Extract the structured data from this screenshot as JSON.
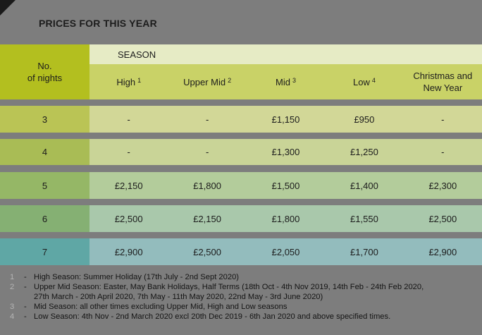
{
  "title": "PRICES FOR THIS YEAR",
  "header": {
    "nights_label_line1": "No.",
    "nights_label_line2": "of nights",
    "season_label": "SEASON",
    "columns": [
      {
        "label": "High",
        "note": "1"
      },
      {
        "label": "Upper Mid",
        "note": "2"
      },
      {
        "label": "Mid",
        "note": "3"
      },
      {
        "label": "Low",
        "note": "4"
      },
      {
        "label_line1": "Christmas and",
        "label_line2": "New Year"
      }
    ]
  },
  "rows": [
    {
      "nights": "3",
      "values": [
        "-",
        "-",
        "£1,150",
        "£950",
        "-"
      ]
    },
    {
      "nights": "4",
      "values": [
        "-",
        "-",
        "£1,300",
        "£1,250",
        "-"
      ]
    },
    {
      "nights": "5",
      "values": [
        "£2,150",
        "£1,800",
        "£1,500",
        "£1,400",
        "£2,300"
      ]
    },
    {
      "nights": "6",
      "values": [
        "£2,500",
        "£2,150",
        "£1,800",
        "£1,550",
        "£2,500"
      ]
    },
    {
      "nights": "7",
      "values": [
        "£2,900",
        "£2,500",
        "£2,050",
        "£1,700",
        "£2,900"
      ]
    }
  ],
  "notes": [
    {
      "num": "1",
      "lines": [
        "High Season: Summer Holiday (17th July - 2nd Sept 2020)"
      ]
    },
    {
      "num": "2",
      "lines": [
        "Upper Mid Season: Easter, May Bank Holidays, Half Terms (18th Oct - 4th Nov 2019, 14th Feb - 24th Feb 2020,",
        "27th March - 20th April 2020, 7th May - 11th May 2020, 22nd May - 3rd June 2020)"
      ]
    },
    {
      "num": "3",
      "lines": [
        "Mid Season: all other times excluding Upper Mid, High and Low seasons"
      ]
    },
    {
      "num": "4",
      "lines": [
        "Low Season: 4th Nov - 2nd March 2020 excl 20th Dec 2019 - 6th Jan 2020 and above specified times."
      ]
    }
  ],
  "colors": {
    "background": "#7d7d7d",
    "header_nights": "#b3bf1f",
    "season_bar": "#e6ebc5",
    "header_cells": "#c9d267"
  }
}
